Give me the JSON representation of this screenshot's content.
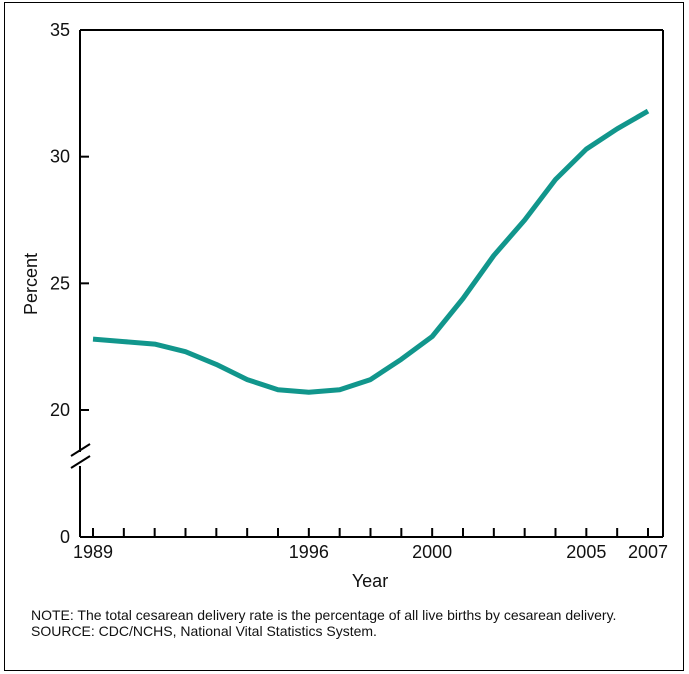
{
  "chart_data": {
    "type": "line",
    "title": "",
    "xlabel": "Year",
    "ylabel": "Percent",
    "x_tick_labels": [
      "1989",
      "1996",
      "2000",
      "2005",
      "2007"
    ],
    "x_tick_years": [
      1989,
      1996,
      2000,
      2005,
      2007
    ],
    "y_tick_labels": [
      "0",
      "20",
      "25",
      "30",
      "35"
    ],
    "y_tick_values": [
      0,
      20,
      25,
      30,
      35
    ],
    "xlim": [
      1989,
      2007
    ],
    "ylim": [
      0,
      35
    ],
    "axis_break": true,
    "grid": false,
    "line_color": "#11968c",
    "series": [
      {
        "x": [
          1989,
          1990,
          1991,
          1992,
          1993,
          1994,
          1995,
          1996,
          1997,
          1998,
          1999,
          2000,
          2001,
          2002,
          2003,
          2004,
          2005,
          2006,
          2007
        ],
        "values": [
          22.8,
          22.7,
          22.6,
          22.3,
          21.8,
          21.2,
          20.8,
          20.7,
          20.8,
          21.2,
          22.0,
          22.9,
          24.4,
          26.1,
          27.5,
          29.1,
          30.3,
          31.1,
          31.8
        ]
      }
    ]
  },
  "notes": {
    "note": "NOTE: The total cesarean delivery rate is the percentage of all live births by cesarean delivery.",
    "source": "SOURCE: CDC/NCHS, National Vital Statistics System."
  }
}
